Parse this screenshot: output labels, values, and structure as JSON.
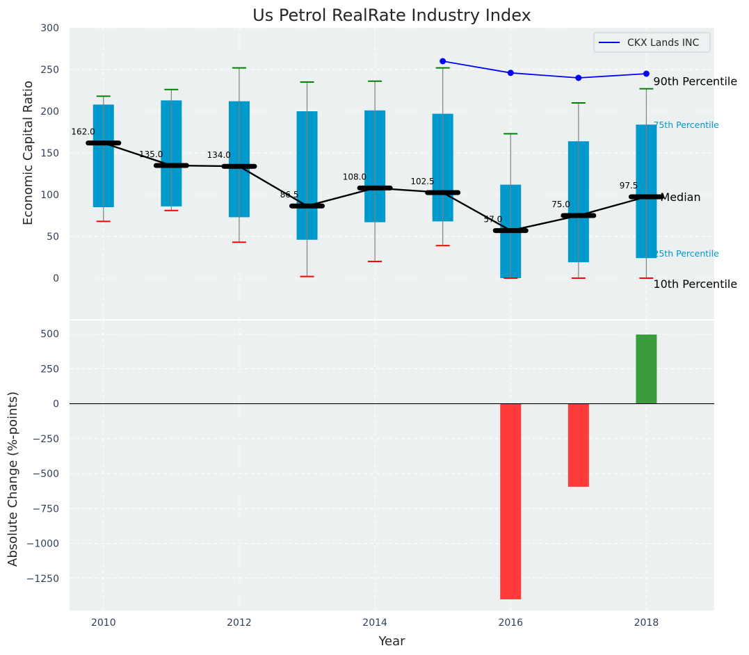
{
  "chart_data": [
    {
      "type": "box",
      "title": "Us Petrol RealRate Industry Index",
      "xlabel": "",
      "ylabel": "Economic Capital Ratio",
      "xlim": [
        2009.5,
        2019
      ],
      "ylim": [
        -50,
        300
      ],
      "yticks": [
        0,
        50,
        100,
        150,
        200,
        250,
        300
      ],
      "grid": true,
      "years": [
        2010,
        2011,
        2012,
        2013,
        2014,
        2015,
        2016,
        2017,
        2018
      ],
      "p10": [
        68,
        81,
        43,
        2,
        20,
        39,
        0,
        0,
        0
      ],
      "p25": [
        85,
        86,
        73,
        46,
        67,
        68,
        0,
        19,
        24
      ],
      "median": [
        162.0,
        135.0,
        134.0,
        86.5,
        108.0,
        102.5,
        57.0,
        75.0,
        97.5
      ],
      "median_labels": [
        "162.0",
        "135.0",
        "134.0",
        "86.5",
        "108.0",
        "102.5",
        "57.0",
        "75.0",
        "97.5"
      ],
      "p75": [
        208,
        213,
        212,
        200,
        201,
        197,
        112,
        164,
        184
      ],
      "p90": [
        218,
        226,
        252,
        235,
        236,
        252,
        173,
        210,
        227
      ],
      "company": {
        "name": "CKX Lands INC",
        "years": [
          2015,
          2016,
          2017,
          2018
        ],
        "values": [
          260,
          246,
          240,
          245
        ]
      },
      "annotations": {
        "p90": "90th Percentile",
        "p75": "75th Percentile",
        "median": "Median",
        "p25": "25th Percentile",
        "p10": "10th Percentile"
      },
      "legend": {
        "location": "upper right",
        "entries": [
          "CKX Lands INC"
        ]
      },
      "colors": {
        "box": "#0099cc",
        "median_line": "#000000",
        "whisker": "#808080",
        "cap_top": "#008000",
        "cap_bottom": "#ff0000",
        "company_line": "#0000ff",
        "plot_bg": "#ecf0f1",
        "grid": "#ffffff"
      }
    },
    {
      "type": "bar",
      "xlabel": "Year",
      "ylabel": "Absolute Change (%-points)",
      "xlim": [
        2009.5,
        2019
      ],
      "ylim": [
        -1480,
        600
      ],
      "yticks": [
        -1250,
        -1000,
        -750,
        -500,
        -250,
        0,
        250,
        500
      ],
      "xticks": [
        2010,
        2012,
        2014,
        2016,
        2018
      ],
      "grid": true,
      "years": [
        2016,
        2017,
        2018
      ],
      "values": [
        -1400,
        -595,
        495
      ],
      "colors": {
        "positive": "#3a9c3a",
        "negative": "#ff3b3b",
        "zero_line": "#000000"
      }
    }
  ]
}
